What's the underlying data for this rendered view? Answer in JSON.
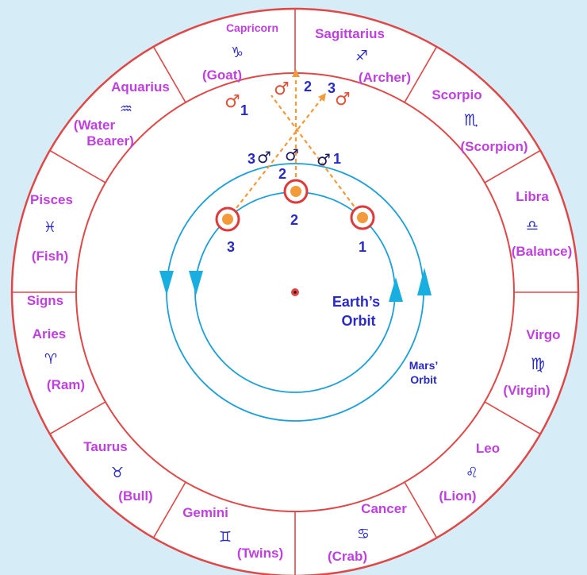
{
  "colors": {
    "background": "#d6ecf7",
    "zodiac_ring_line": "#e04848",
    "sign_label": "#c03fe0",
    "glyph": "#2a2ac8",
    "orbit": "#1da0d8",
    "arrow": "#f39a3a",
    "mars_symbol_outer": "#e0533a",
    "mars_symbol_inner": "#1a1a60"
  },
  "signs": [
    {
      "name": "Capricorn",
      "glyph": "♑",
      "meaning": "(Goat)"
    },
    {
      "name": "Sagittarius",
      "glyph": "♐",
      "meaning": "(Archer)"
    },
    {
      "name": "Scorpio",
      "glyph": "♏",
      "meaning": "(Scorpion)"
    },
    {
      "name": "Libra",
      "glyph": "♎",
      "meaning": "(Balance)"
    },
    {
      "name": "Virgo",
      "glyph": "♍",
      "meaning": "(Virgin)"
    },
    {
      "name": "Leo",
      "glyph": "♌",
      "meaning": "(Lion)"
    },
    {
      "name": "Cancer",
      "glyph": "♋",
      "meaning": "(Crab)"
    },
    {
      "name": "Gemini",
      "glyph": "♊",
      "meaning": "(Twins)"
    },
    {
      "name": "Taurus",
      "glyph": "♉",
      "meaning": "(Bull)"
    },
    {
      "name": "Aries",
      "glyph": "♈",
      "meaning": "(Ram)"
    },
    {
      "name": "Pisces",
      "glyph": "♓",
      "meaning": "(Fish)"
    },
    {
      "name": "Aquarius",
      "glyph": "♒",
      "meaning_line1": "(Water",
      "meaning_line2": "Bearer)"
    }
  ],
  "signs_heading": "Signs",
  "mars_symbol": "♂",
  "positions": {
    "earth": [
      "3",
      "2",
      "1"
    ],
    "mars_near": [
      "3",
      "2",
      "1"
    ],
    "mars_far": [
      "1",
      "2",
      "3"
    ]
  },
  "orbits": {
    "earth_line1": "Earth’s",
    "earth_line2": "Orbit",
    "mars_line1": "Mars’",
    "mars_line2": "Orbit"
  }
}
